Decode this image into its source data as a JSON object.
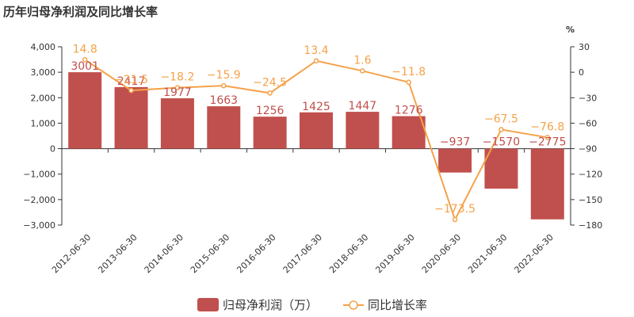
{
  "title": "历年归母净利润及同比增长率",
  "chart_data": {
    "type": "bar",
    "categories": [
      "2012-06-30",
      "2013-06-30",
      "2014-06-30",
      "2015-06-30",
      "2016-06-30",
      "2017-06-30",
      "2018-06-30",
      "2019-06-30",
      "2020-06-30",
      "2021-06-30",
      "2022-06-30"
    ],
    "series": [
      {
        "name": "归母净利润（万）",
        "type": "bar",
        "axis": "left",
        "color": "#c0504d",
        "values": [
          3001,
          2417,
          1977,
          1663,
          1256,
          1425,
          1447,
          1276,
          -937,
          -1570,
          -2775
        ]
      },
      {
        "name": "同比增长率",
        "type": "line",
        "axis": "right",
        "color": "#f4a24a",
        "values": [
          14.8,
          -21.5,
          -18.2,
          -15.9,
          -24.5,
          13.4,
          1.6,
          -11.8,
          -173.5,
          -67.5,
          -76.8
        ]
      }
    ],
    "y_left": {
      "min": -3000,
      "max": 4000,
      "ticks": [
        "4,000",
        "3,000",
        "2,000",
        "1,000",
        "0",
        "-1,000",
        "-2,000",
        "-3,000"
      ]
    },
    "y_right": {
      "min": -180,
      "max": 30,
      "unit": "%",
      "ticks": [
        "30",
        "0",
        "-30",
        "-60",
        "-90",
        "-120",
        "-150",
        "-180"
      ]
    },
    "grid": false,
    "legend_position": "bottom"
  }
}
